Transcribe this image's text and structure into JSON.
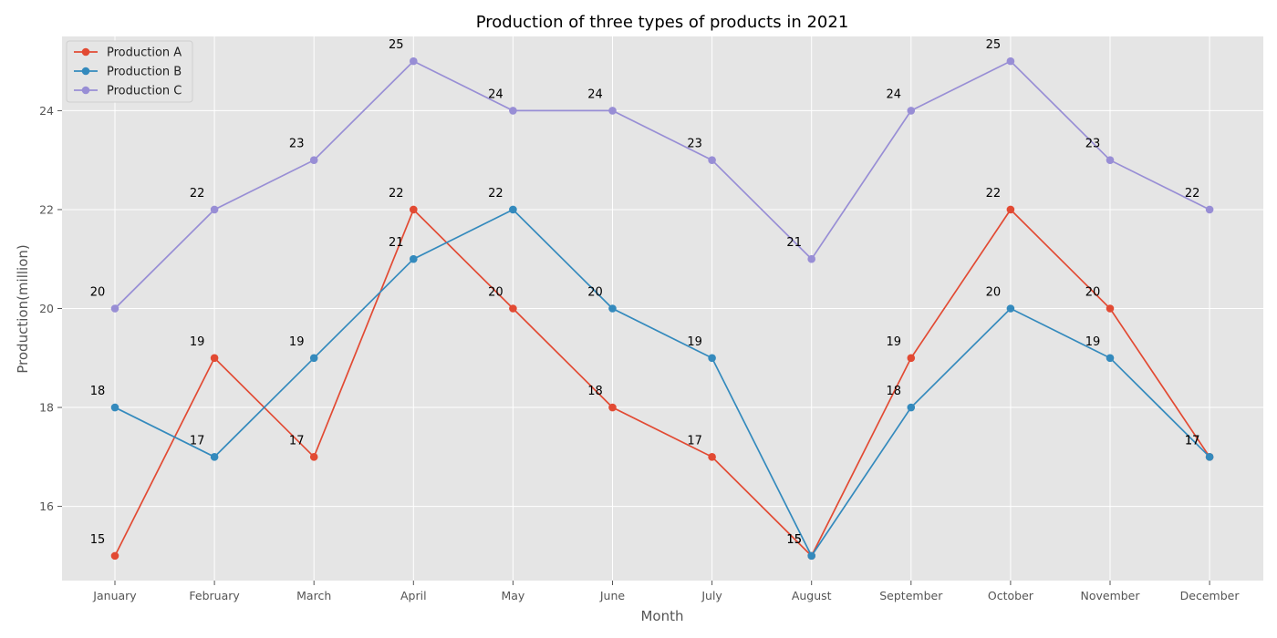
{
  "chart_data": {
    "type": "line",
    "title": "Production of three types of products in 2021",
    "xlabel": "Month",
    "ylabel": "Production(million)",
    "categories": [
      "January",
      "February",
      "March",
      "April",
      "May",
      "June",
      "July",
      "August",
      "September",
      "October",
      "November",
      "December"
    ],
    "series": [
      {
        "name": "Production A",
        "values": [
          15,
          19,
          17,
          22,
          20,
          18,
          17,
          15,
          19,
          22,
          20,
          17
        ],
        "color": "#E24A33"
      },
      {
        "name": "Production B",
        "values": [
          18,
          17,
          19,
          21,
          22,
          20,
          19,
          15,
          18,
          20,
          19,
          17
        ],
        "color": "#348ABD"
      },
      {
        "name": "Production C",
        "values": [
          20,
          22,
          23,
          25,
          24,
          24,
          23,
          21,
          24,
          25,
          23,
          22
        ],
        "color": "#988ED5"
      }
    ],
    "ylim": [
      14.5,
      25.5
    ],
    "yticks": [
      16,
      18,
      20,
      22,
      24
    ],
    "grid": true,
    "legend": "top-left",
    "plot_background": "#E5E5E5"
  }
}
